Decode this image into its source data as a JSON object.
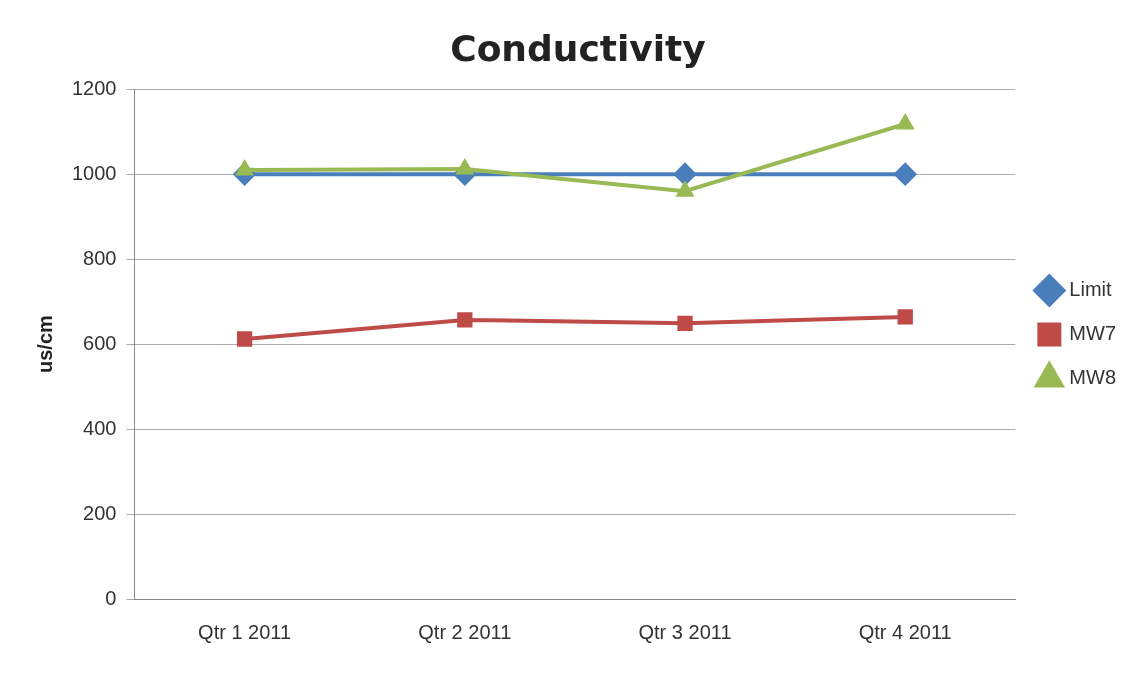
{
  "chart_data": {
    "type": "line",
    "title": "Conductivity",
    "ylabel": "us/cm",
    "categories": [
      "Qtr 1 2011",
      "Qtr 2 2011",
      "Qtr 3 2011",
      "Qtr 4 2011"
    ],
    "series": [
      {
        "name": "Limit",
        "color": "#4a7ebb",
        "marker": "diamond",
        "values": [
          1000,
          1000,
          1000,
          1000
        ]
      },
      {
        "name": "MW7",
        "color": "#be4b48",
        "marker": "square",
        "values": [
          612,
          657,
          649,
          664
        ]
      },
      {
        "name": "MW8",
        "color": "#98b954",
        "marker": "triangle",
        "values": [
          1010,
          1012,
          960,
          1118
        ]
      }
    ],
    "ylim": [
      0,
      1200
    ],
    "yticks": [
      0,
      200,
      400,
      600,
      800,
      1000,
      1200
    ],
    "grid": "y",
    "legend": "right"
  }
}
